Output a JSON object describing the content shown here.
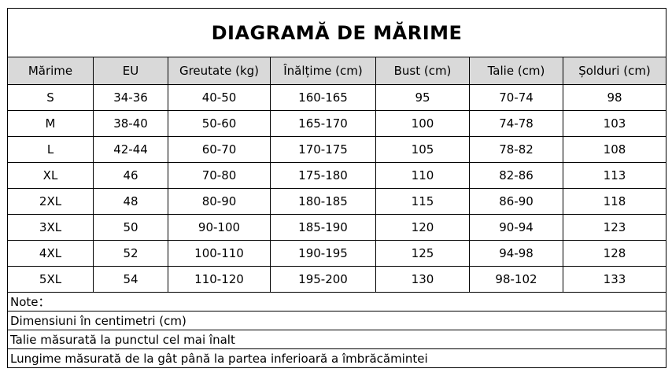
{
  "title": "DIAGRAMĂ DE MĂRIME",
  "headers": [
    "Mărime",
    "EU",
    "Greutate (kg)",
    "Înălțime (cm)",
    "Bust (cm)",
    "Talie (cm)",
    "Șolduri (cm)"
  ],
  "rows": [
    [
      "S",
      "34-36",
      "40-50",
      "160-165",
      "95",
      "70-74",
      "98"
    ],
    [
      "M",
      "38-40",
      "50-60",
      "165-170",
      "100",
      "74-78",
      "103"
    ],
    [
      "L",
      "42-44",
      "60-70",
      "170-175",
      "105",
      "78-82",
      "108"
    ],
    [
      "XL",
      "46",
      "70-80",
      "175-180",
      "110",
      "82-86",
      "113"
    ],
    [
      "2XL",
      "48",
      "80-90",
      "180-185",
      "115",
      "86-90",
      "118"
    ],
    [
      "3XL",
      "50",
      "90-100",
      "185-190",
      "120",
      "90-94",
      "123"
    ],
    [
      "4XL",
      "52",
      "100-110",
      "190-195",
      "125",
      "94-98",
      "128"
    ],
    [
      "5XL",
      "54",
      "110-120",
      "195-200",
      "130",
      "98-102",
      "133"
    ]
  ],
  "notes": [
    "Note：",
    "Dimensiuni în centimetri (cm)",
    "Talie măsurată la punctul cel mai înalt",
    "Lungime măsurată de la gât până la partea inferioară a îmbrăcămintei"
  ],
  "colors": {
    "header_bg": "#d9d9d9",
    "border": "#000000"
  }
}
